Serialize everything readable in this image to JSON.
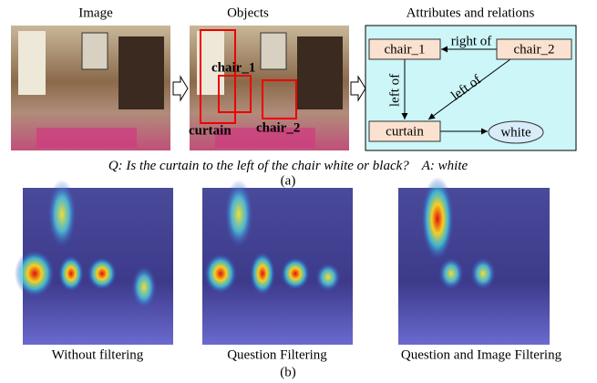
{
  "panel_a": {
    "headers": [
      "Image",
      "Objects",
      "Attributes and relations"
    ],
    "object_labels": [
      "chair_1",
      "curtain",
      "chair_2"
    ],
    "graph": {
      "nodes": [
        "chair_1",
        "chair_2",
        "curtain",
        "white"
      ],
      "edges": [
        "right of",
        "left of",
        "left of"
      ]
    },
    "question": "Q: Is the curtain to the left of the chair white or black?",
    "answer": "A: white",
    "caption": "(a)"
  },
  "panel_b": {
    "labels": [
      "Without filtering",
      "Question Filtering",
      "Question and Image Filtering"
    ],
    "caption": "(b)"
  }
}
